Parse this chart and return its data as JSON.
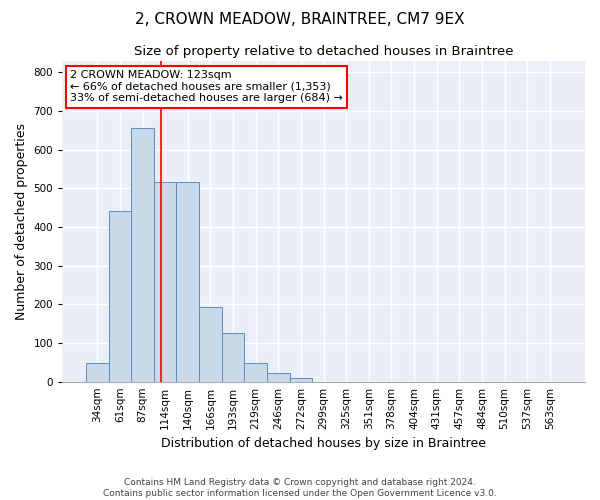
{
  "title": "2, CROWN MEADOW, BRAINTREE, CM7 9EX",
  "subtitle": "Size of property relative to detached houses in Braintree",
  "xlabel": "Distribution of detached houses by size in Braintree",
  "ylabel": "Number of detached properties",
  "bar_labels": [
    "34sqm",
    "61sqm",
    "87sqm",
    "114sqm",
    "140sqm",
    "166sqm",
    "193sqm",
    "219sqm",
    "246sqm",
    "272sqm",
    "299sqm",
    "325sqm",
    "351sqm",
    "378sqm",
    "404sqm",
    "431sqm",
    "457sqm",
    "484sqm",
    "510sqm",
    "537sqm",
    "563sqm"
  ],
  "bar_values": [
    47,
    442,
    656,
    515,
    515,
    193,
    125,
    47,
    23,
    10,
    0,
    0,
    0,
    0,
    0,
    0,
    0,
    0,
    0,
    0,
    0
  ],
  "bar_color": "#c9d9ea",
  "bar_edge_color": "#5a8fc0",
  "vline_x": 2.82,
  "vline_color": "red",
  "annotation_text": "2 CROWN MEADOW: 123sqm\n← 66% of detached houses are smaller (1,353)\n33% of semi-detached houses are larger (684) →",
  "annotation_box_color": "white",
  "annotation_box_edge": "red",
  "ylim": [
    0,
    830
  ],
  "yticks": [
    0,
    100,
    200,
    300,
    400,
    500,
    600,
    700,
    800
  ],
  "background_color": "#eaeff7",
  "grid_color": "white",
  "footer1": "Contains HM Land Registry data © Crown copyright and database right 2024.",
  "footer2": "Contains public sector information licensed under the Open Government Licence v3.0.",
  "title_fontsize": 11,
  "subtitle_fontsize": 9.5,
  "ylabel_fontsize": 9,
  "xlabel_fontsize": 9,
  "tick_fontsize": 7.5,
  "annot_fontsize": 8,
  "footer_fontsize": 6.5
}
